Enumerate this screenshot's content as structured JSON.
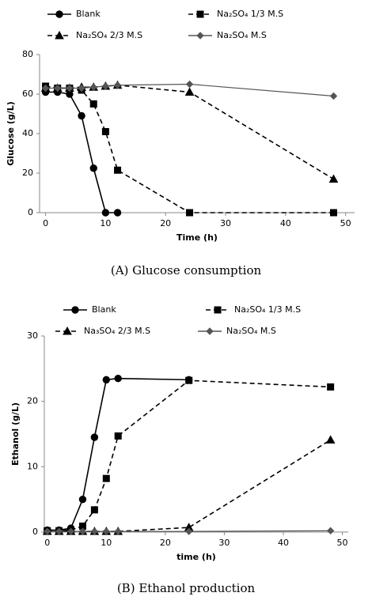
{
  "chart_data": [
    {
      "type": "line",
      "caption": "(A) Glucose consumption",
      "xlabel": "Time (h)",
      "ylabel": "Glucose (g/L)",
      "x": [
        0,
        2,
        4,
        6,
        8,
        10,
        12,
        24,
        48
      ],
      "xlim": [
        -1,
        51.5
      ],
      "xticks": [
        0,
        10,
        20,
        30,
        40,
        50
      ],
      "ylim": [
        0,
        80
      ],
      "yticks": [
        0,
        20,
        40,
        60,
        80
      ],
      "series": [
        {
          "name": "Blank",
          "color": "#000",
          "marker": "circle",
          "dash": false,
          "values": [
            61,
            61,
            60,
            49,
            22.5,
            0,
            0,
            null,
            null
          ]
        },
        {
          "name": "Na₂SO₄ 1/3 M.S",
          "color": "#000",
          "marker": "square",
          "dash": true,
          "values": [
            64,
            63,
            63,
            62,
            55,
            41,
            21.5,
            0,
            0
          ]
        },
        {
          "name": "Na₂SO₄ 2/3 M.S",
          "color": "#000",
          "marker": "triangle",
          "dash": true,
          "values": [
            63,
            63,
            63,
            63.5,
            63.5,
            64,
            64.5,
            61,
            17
          ]
        },
        {
          "name": "Na₂SO₄  M.S",
          "color": "#555",
          "marker": "diamond",
          "dash": false,
          "values": [
            63,
            63,
            63,
            63,
            63.5,
            64,
            64.5,
            65,
            59
          ]
        }
      ]
    },
    {
      "type": "line",
      "caption": "(B) Ethanol production",
      "xlabel": "time (h)",
      "ylabel": "Ethanol (g/L)",
      "x": [
        0,
        2,
        4,
        6,
        8,
        10,
        12,
        24,
        48
      ],
      "xlim": [
        -0.5,
        51
      ],
      "xticks": [
        0,
        10,
        20,
        30,
        40,
        50
      ],
      "ylim": [
        0,
        30
      ],
      "yticks": [
        0,
        10,
        20,
        30
      ],
      "series": [
        {
          "name": "Blank",
          "color": "#000",
          "marker": "circle",
          "dash": false,
          "values": [
            0.3,
            0.3,
            0.6,
            5,
            14.5,
            23.3,
            23.5,
            23.3,
            null
          ]
        },
        {
          "name": "Na₂SO₄ 1/3 M.S",
          "color": "#000",
          "marker": "square",
          "dash": true,
          "values": [
            0.2,
            0.2,
            0.3,
            0.9,
            3.4,
            8.2,
            14.7,
            23.2,
            22.2
          ]
        },
        {
          "name": "Na₃SO₄ 2/3 M.S",
          "color": "#000",
          "marker": "triangle",
          "dash": true,
          "values": [
            0.1,
            0.1,
            0.1,
            0.1,
            0.1,
            0.1,
            0.1,
            0.7,
            14.1
          ]
        },
        {
          "name": "Na₂SO₄  M.S",
          "color": "#555",
          "marker": "diamond",
          "dash": false,
          "values": [
            0.1,
            0.1,
            0.1,
            0.1,
            0.1,
            0.1,
            0.1,
            0.1,
            0.2
          ]
        }
      ]
    }
  ]
}
